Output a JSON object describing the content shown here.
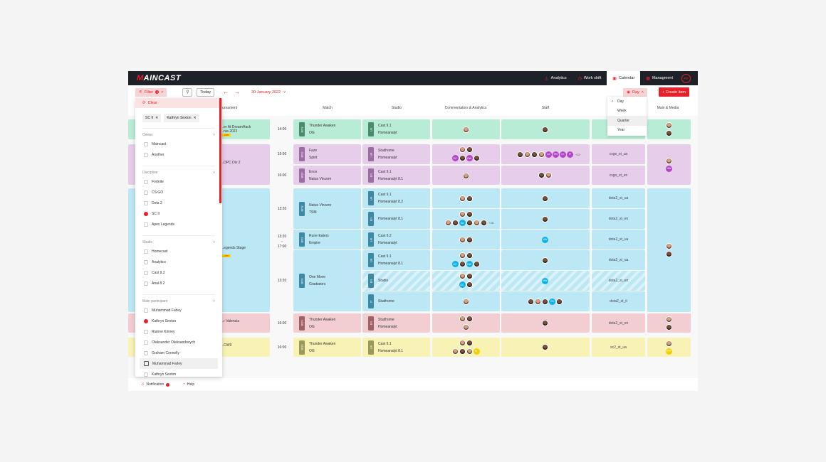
{
  "app": {
    "logo": "MAINCAST"
  },
  "topnav": {
    "items": [
      {
        "label": "Analytics",
        "icon": "analytics-icon"
      },
      {
        "label": "Work shift",
        "icon": "clock-icon"
      },
      {
        "label": "Calendar",
        "icon": "calendar-icon",
        "active": true
      },
      {
        "label": "Managment",
        "icon": "grid-icon"
      }
    ],
    "user_initials": "PP"
  },
  "toolbar": {
    "filter_label": "Filter",
    "filter_count": "2",
    "today_label": "Today",
    "date": "30 January 2022",
    "view_label": "Day",
    "create_label": "+ Create item"
  },
  "view_dropdown": {
    "options": [
      "Day",
      "Week",
      "Quarter",
      "Year"
    ],
    "selected": "Day",
    "hovered": "Quarter"
  },
  "columns": [
    "Tournament",
    "Match",
    "Studio",
    "Commentators & Analytics",
    "Staff",
    "Main & Media"
  ],
  "filter_panel": {
    "clear_label": "Clear",
    "chips": [
      "SC II",
      "Kathryn Sexton"
    ],
    "sections": [
      {
        "title": "Owner",
        "options": [
          {
            "label": "Maincast",
            "checked": false
          },
          {
            "label": "Another",
            "checked": false
          }
        ]
      },
      {
        "title": "Discipline",
        "options": [
          {
            "label": "Fortnite",
            "checked": false
          },
          {
            "label": "CS:GO",
            "checked": false
          },
          {
            "label": "Dota 2",
            "checked": false
          },
          {
            "label": "SC II",
            "checked": true
          },
          {
            "label": "Apex Legends",
            "checked": false
          }
        ]
      },
      {
        "title": "Studio",
        "options": [
          {
            "label": "Homecast",
            "checked": false
          },
          {
            "label": "Analytics",
            "checked": false
          },
          {
            "label": "Cast 9.2",
            "checked": false
          },
          {
            "label": "Anal 8.2",
            "checked": false
          }
        ]
      },
      {
        "title": "Main participant",
        "options": [
          {
            "label": "Muhammad Farley",
            "checked": false
          },
          {
            "label": "Kathryn Sexton",
            "checked": true
          },
          {
            "label": "Rianne Kinney",
            "checked": false
          },
          {
            "label": "Oleksander Oleksandovych",
            "checked": false
          },
          {
            "label": "Graham Connelly",
            "checked": false
          },
          {
            "label": "Muhammad Farley",
            "checked": false,
            "hovered": true
          },
          {
            "label": "Kathryn Sexton",
            "checked": false
          }
        ]
      }
    ]
  },
  "rows": [
    {
      "color": "green",
      "tournament": [
        "...er At DreamHack",
        "...nia 2022"
      ],
      "badge": "...ulter",
      "time": "14:00",
      "match_format": "BO3",
      "teams": [
        "Thunder Awaken",
        "OG"
      ],
      "studio_lang": "UA",
      "studio": [
        "Cast 9.1",
        "Homeanalyt"
      ],
      "code": ""
    },
    {
      "color": "purple",
      "tournament": [
        "...DPC Div 2"
      ],
      "time": "15:00",
      "match_format": "BO3",
      "teams": [
        "Faze",
        "Spirit"
      ],
      "studio_lang": "UA",
      "studio": [
        "Studhome",
        "Homeanalyt"
      ],
      "code": "csgo_st_ua",
      "staff_initials": [
        "AX",
        "RN",
        "LK",
        "IP"
      ],
      "staff_more": "+22",
      "comm_initials": [
        "GC",
        "HW"
      ]
    },
    {
      "color": "purple",
      "time": "16:00",
      "match_format": "BO3",
      "teams": [
        "Ence",
        "Natus Vincere"
      ],
      "studio_lang": "EN",
      "studio": [
        "Cast 9.1",
        "Homeanalyt 8.1"
      ],
      "code": "csgo_st_en",
      "media_initials": [
        "HW"
      ]
    },
    {
      "color": "blue",
      "tournament": [
        "...egends Stage"
      ],
      "badge": "...ulter",
      "time": "13:20",
      "match_format": "BO3",
      "teams": [
        "Natus Vincere",
        "TSM"
      ],
      "studio_lang": "UA",
      "studio": [
        "Cast 9.1",
        "Homeanalyt 8.2"
      ],
      "code": "dota2_st_ua"
    },
    {
      "color": "blue",
      "studio_lang": "EN",
      "studio": [
        "Homeanalyt 8.1"
      ],
      "code": "dota2_st_en",
      "comm_initials": [
        "SS"
      ],
      "comm_more": "+28"
    },
    {
      "color": "blue",
      "time": "13:20 - 17:00",
      "match_format": "BO3",
      "teams": [
        "Rune Eaters",
        "Empire"
      ],
      "studio_lang": "UA",
      "studio": [
        "Cast 9.2",
        "Homeanalyt"
      ],
      "code": "dota2_st_ua",
      "staff_initials": [
        "HW"
      ]
    },
    {
      "color": "blue",
      "time": "13:20",
      "match_format": "BO3",
      "teams": [
        "One Move",
        "Gradiators"
      ],
      "studio_lang": "UA",
      "studio": [
        "Cast 9.1",
        "Homeanalyt 8.1"
      ],
      "code": "dota2_st_ua",
      "comm_initials": [
        "GC",
        "HW"
      ]
    },
    {
      "color": "blue",
      "studio_lang": "EN",
      "studio": [
        "Studio"
      ],
      "code": "dota2_st_en",
      "comm_initials": [
        "GC"
      ],
      "staff_initials": [
        "HW"
      ]
    },
    {
      "color": "blue",
      "studio_lang": "IT",
      "studio": [
        "Studhome"
      ],
      "code": "dota2_st_it",
      "staff_initials": [
        "SS"
      ]
    },
    {
      "color": "red",
      "tournament": [
        "...r Valencia"
      ],
      "time": "16:00",
      "match_format": "BO3",
      "teams": [
        "Thunder Awaken",
        "OG"
      ],
      "studio_lang": "EN",
      "studio": [
        "Studhome",
        "Homeanalyt"
      ],
      "code": "dota2_st_en"
    },
    {
      "color": "yellow",
      "tournament": [
        "...CW9"
      ],
      "time": "16:00",
      "match_format": "BO3",
      "teams": [
        "Thunder Awaken",
        "OG"
      ],
      "studio_lang": "UA",
      "studio": [
        "Cast 9.1",
        "Homeanalyt 8.1"
      ],
      "code": "sc2_st_ua",
      "comm_initials": [
        "RL"
      ],
      "media_initials": [
        "PPP"
      ]
    }
  ],
  "footer": {
    "notification_label": "Notification",
    "help_label": "Help"
  }
}
